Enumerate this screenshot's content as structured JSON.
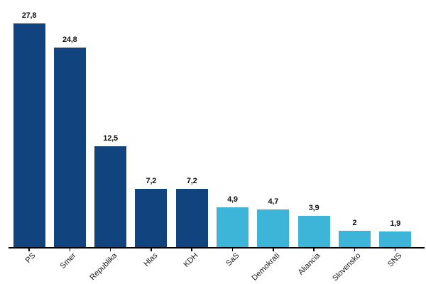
{
  "chart_data": {
    "type": "bar",
    "categories": [
      "PS",
      "Smer",
      "Republika",
      "Hlas",
      "KDH",
      "SaS",
      "Demokrati",
      "Aliancia",
      "Slovensko",
      "SNS"
    ],
    "values": [
      27.8,
      24.8,
      12.5,
      7.2,
      7.2,
      4.9,
      4.7,
      3.9,
      2,
      1.9
    ],
    "value_labels": [
      "27,8",
      "24,8",
      "12,5",
      "7,2",
      "7,2",
      "4,9",
      "4,7",
      "3,9",
      "2",
      "1,9"
    ],
    "bar_colors": [
      "#11447e",
      "#11447e",
      "#11447e",
      "#11447e",
      "#11447e",
      "#3db5d9",
      "#3db5d9",
      "#3db5d9",
      "#3db5d9",
      "#3db5d9"
    ],
    "colors": {
      "dark_blue": "#11447e",
      "light_blue": "#3db5d9",
      "axis": "#000000",
      "label_text": "#111111"
    },
    "title": "",
    "xlabel": "",
    "ylabel": "",
    "ylim": [
      0,
      30.7
    ],
    "grid": false,
    "legend": null,
    "x_tick_rotation_deg": 45,
    "value_decimal_separator": ","
  }
}
